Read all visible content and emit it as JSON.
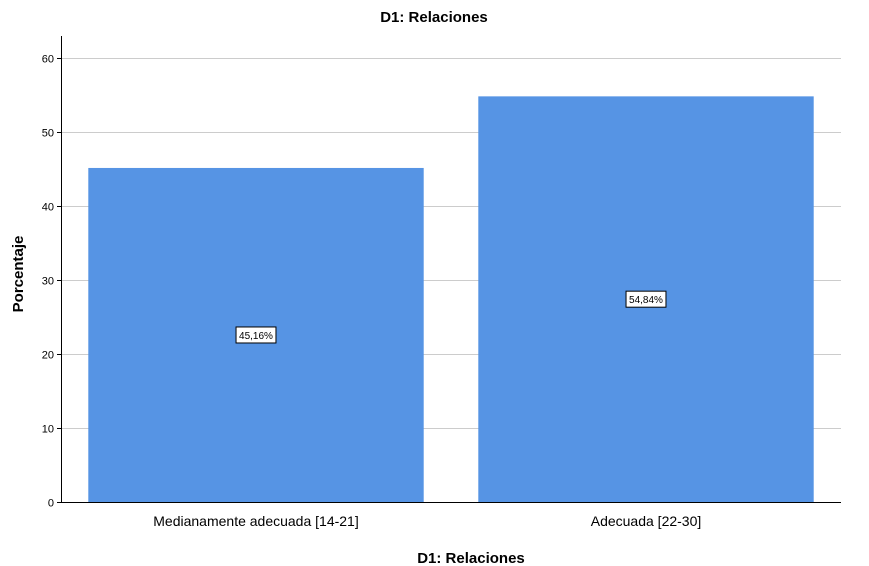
{
  "chart_data": {
    "type": "bar",
    "title": "D1: Relaciones",
    "xlabel": "D1: Relaciones",
    "ylabel": "Porcentaje",
    "categories": [
      "Medianamente adecuada [14-21]",
      "Adecuada [22-30]"
    ],
    "values": [
      45.16,
      54.84
    ],
    "data_labels": [
      "45,16%",
      "54,84%"
    ],
    "yticks": [
      "0",
      "10",
      "20",
      "30",
      "40",
      "50",
      "60"
    ],
    "ylim": [
      0,
      63
    ],
    "grid": true,
    "bar_color": "#5694e4"
  }
}
